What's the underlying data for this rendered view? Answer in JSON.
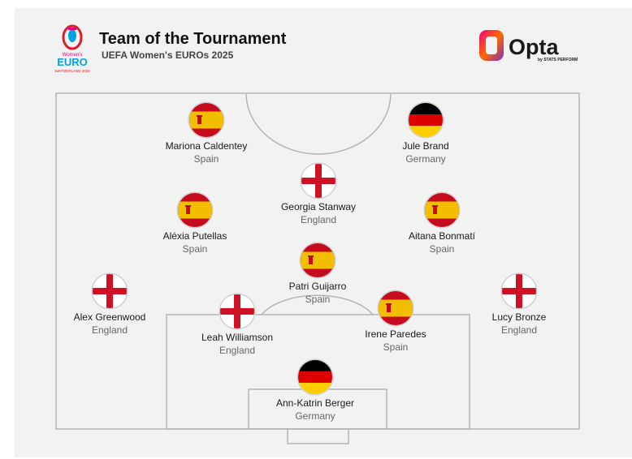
{
  "header": {
    "title": "Team of the Tournament",
    "subtitle": "UEFA Women's EUROs 2025"
  },
  "tournament_logo": {
    "text_main": "EURO",
    "text_top": "Women's",
    "text_bottom": "SWITZERLAND 2025",
    "colors": [
      "#e6007e",
      "#00a3e0",
      "#d61f26"
    ]
  },
  "brand_logo": {
    "name": "Opta",
    "tagline": "by STATS PERFORM",
    "colors": [
      "#e6007e",
      "#ff6a00",
      "#7b2fbe"
    ]
  },
  "flags": {
    "spain": {
      "red": "#c60b1e",
      "yellow": "#f1bf00"
    },
    "england": {
      "white": "#ffffff",
      "red": "#ce1124"
    },
    "germany": {
      "black": "#000000",
      "red": "#dd0000",
      "gold": "#ffce00"
    }
  },
  "players": [
    {
      "name": "Mariona Caldentey",
      "country": "Spain",
      "flag": "spain"
    },
    {
      "name": "Jule Brand",
      "country": "Germany",
      "flag": "germany"
    },
    {
      "name": "Georgia Stanway",
      "country": "England",
      "flag": "england"
    },
    {
      "name": "Aléxia Putellas",
      "country": "Spain",
      "flag": "spain"
    },
    {
      "name": "Aitana Bonmatí",
      "country": "Spain",
      "flag": "spain"
    },
    {
      "name": "Patri Guijarro",
      "country": "Spain",
      "flag": "spain"
    },
    {
      "name": "Alex Greenwood",
      "country": "England",
      "flag": "england"
    },
    {
      "name": "Lucy Bronze",
      "country": "England",
      "flag": "england"
    },
    {
      "name": "Leah Williamson",
      "country": "England",
      "flag": "england"
    },
    {
      "name": "Irene Paredes",
      "country": "Spain",
      "flag": "spain"
    },
    {
      "name": "Ann-Katrin Berger",
      "country": "Germany",
      "flag": "germany"
    }
  ]
}
